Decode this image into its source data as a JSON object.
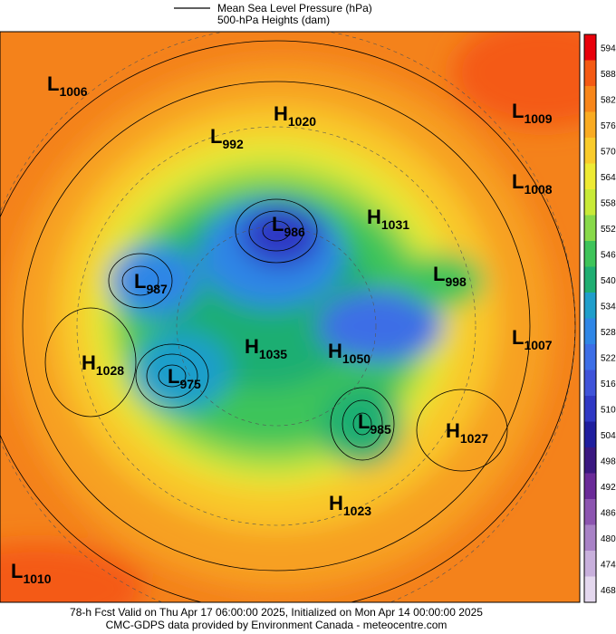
{
  "legend": {
    "items": [
      "Mean Sea Level Pressure (hPa)",
      "500-hPa Heights (dam)"
    ]
  },
  "colorbar": {
    "ticks": [
      594,
      588,
      582,
      576,
      570,
      564,
      558,
      552,
      546,
      540,
      534,
      528,
      522,
      516,
      510,
      504,
      498,
      492,
      486,
      480,
      474,
      468
    ],
    "colors": [
      "#e8000b",
      "#f45a14",
      "#f7861a",
      "#f9ab22",
      "#f9cb2b",
      "#eeea34",
      "#c8ea38",
      "#88d94a",
      "#3ec45a",
      "#1fae72",
      "#1f9ecb",
      "#2f86e6",
      "#3c6ee6",
      "#3f53d9",
      "#2f38c4",
      "#1f1e9e",
      "#3a1880",
      "#6a2a98",
      "#8c55b0",
      "#a882c6",
      "#c8b0dc",
      "#e4d8ee"
    ]
  },
  "centers": [
    {
      "type": "L",
      "value": 1006
    },
    {
      "type": "L",
      "value": 992
    },
    {
      "type": "H",
      "value": 1020
    },
    {
      "type": "L",
      "value": 1009
    },
    {
      "type": "L",
      "value": 1008
    },
    {
      "type": "H",
      "value": 1031
    },
    {
      "type": "L",
      "value": 986
    },
    {
      "type": "L",
      "value": 998
    },
    {
      "type": "L",
      "value": 987
    },
    {
      "type": "L",
      "value": 1007
    },
    {
      "type": "H",
      "value": 1028
    },
    {
      "type": "H",
      "value": 1035
    },
    {
      "type": "H",
      "value": 1050
    },
    {
      "type": "L",
      "value": 975
    },
    {
      "type": "L",
      "value": 985
    },
    {
      "type": "H",
      "value": 1027
    },
    {
      "type": "H",
      "value": 1023
    },
    {
      "type": "L",
      "value": 1010
    }
  ],
  "footer": {
    "lines": [
      "78-h Fcst Valid on Thu Apr 17 06:00:00 2025, Initialized on Mon Apr 14 00:00:00 2025",
      "CMC-GDPS data provided by Environment Canada - meteocentre.com"
    ]
  }
}
